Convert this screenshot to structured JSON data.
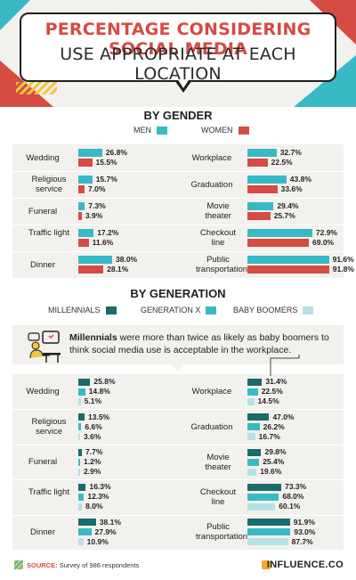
{
  "header": {
    "title_line1": "PERCENTAGE CONSIDERING SOCIAL MEDIA",
    "title_line2": "USE APPROPRIATE AT EACH LOCATION"
  },
  "gender_section": {
    "title": "BY GENDER",
    "legend": [
      {
        "label": "MEN",
        "color": "#38b9c6"
      },
      {
        "label": "WOMEN",
        "color": "#d64b42"
      }
    ]
  },
  "generation_section": {
    "title": "BY GENERATION",
    "legend": [
      {
        "label": "MILLENNIALS",
        "color": "#1a6b6c"
      },
      {
        "label": "GENERATION X",
        "color": "#38b9c6"
      },
      {
        "label": "BABY BOOMERS",
        "color": "#b7e1e3"
      }
    ],
    "callout_bold": "Millennials",
    "callout_rest": " were more than twice as likely as baby boomers to think social media use is acceptable in the workplace."
  },
  "footer": {
    "source_label": "SOURCE:",
    "source_text": "Survey of 986 respondents",
    "brand": "INFLUENCE.CO"
  },
  "chart_data": [
    {
      "type": "bar",
      "title": "BY GENDER",
      "categories": [
        "Wedding",
        "Religious service",
        "Funeral",
        "Traffic light",
        "Dinner",
        "Workplace",
        "Graduation",
        "Movie theater",
        "Checkout line",
        "Public transportation"
      ],
      "series": [
        {
          "name": "MEN",
          "values": [
            26.8,
            15.7,
            7.3,
            17.2,
            38.0,
            32.7,
            43.8,
            29.4,
            72.9,
            91.6
          ],
          "labels": [
            "26.8%",
            "15.7%",
            "7.3%",
            "17.2%",
            "38.0%",
            "32.7%",
            "43.8%",
            "29.4%",
            "72.9%",
            "91.6%"
          ]
        },
        {
          "name": "WOMEN",
          "values": [
            15.5,
            7.0,
            3.9,
            11.6,
            28.1,
            22.5,
            33.6,
            25.7,
            69.0,
            91.8
          ],
          "labels": [
            "15.5%",
            "7.0%",
            "3.9%",
            "11.6%",
            "28.1%",
            "22.5%",
            "33.6%",
            "25.7%",
            "69.0%",
            "91.8%"
          ]
        }
      ],
      "ylim": [
        0,
        100
      ]
    },
    {
      "type": "bar",
      "title": "BY GENERATION",
      "categories": [
        "Wedding",
        "Religious service",
        "Funeral",
        "Traffic light",
        "Dinner",
        "Workplace",
        "Graduation",
        "Movie theater",
        "Checkout line",
        "Public transportation"
      ],
      "series": [
        {
          "name": "MILLENNIALS",
          "values": [
            25.8,
            13.5,
            7.7,
            16.3,
            38.1,
            31.4,
            47.0,
            29.8,
            73.3,
            91.9
          ],
          "labels": [
            "25.8%",
            "13.5%",
            "7.7%",
            "16.3%",
            "38.1%",
            "31.4%",
            "47.0%",
            "29.8%",
            "73.3%",
            "91.9%"
          ]
        },
        {
          "name": "GENERATION X",
          "values": [
            14.8,
            6.6,
            1.2,
            12.3,
            27.9,
            22.5,
            26.2,
            25.4,
            68.0,
            93.0
          ],
          "labels": [
            "14.8%",
            "6.6%",
            "1.2%",
            "12.3%",
            "27.9%",
            "22.5%",
            "26.2%",
            "25.4%",
            "68.0%",
            "93.0%"
          ]
        },
        {
          "name": "BABY BOOMERS",
          "values": [
            5.1,
            3.6,
            2.9,
            8.0,
            10.9,
            14.5,
            16.7,
            19.6,
            60.1,
            87.7
          ],
          "labels": [
            "5.1%",
            "3.6%",
            "2.9%",
            "8.0%",
            "10.9%",
            "14.5%",
            "16.7%",
            "19.6%",
            "60.1%",
            "87.7%"
          ]
        }
      ],
      "ylim": [
        0,
        100
      ]
    }
  ]
}
